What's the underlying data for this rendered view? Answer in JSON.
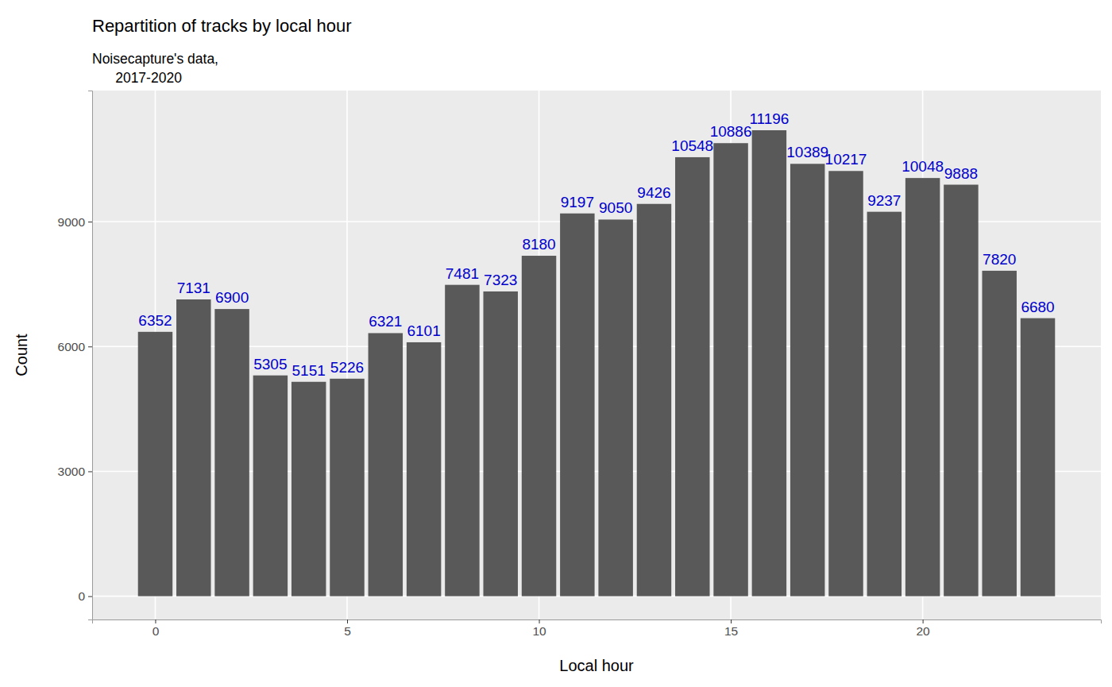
{
  "chart_data": {
    "type": "bar",
    "title": "Repartition of tracks by local hour",
    "subtitle": "Noisecapture's data,\n      2017-2020",
    "x_label": "Local hour",
    "y_label": "Count",
    "x": [
      0,
      1,
      2,
      3,
      4,
      5,
      6,
      7,
      8,
      9,
      10,
      11,
      12,
      13,
      14,
      15,
      16,
      17,
      18,
      19,
      20,
      21,
      22,
      23
    ],
    "values": [
      6352,
      7131,
      6900,
      5305,
      5151,
      5226,
      6321,
      6101,
      7481,
      7323,
      8180,
      9197,
      9050,
      9426,
      10548,
      10886,
      11196,
      10389,
      10217,
      9237,
      10048,
      9888,
      7820,
      6680
    ],
    "color": "#595959",
    "xlim": [
      -1.645,
      24.645
    ],
    "xticks": [
      0,
      5,
      10,
      15,
      20
    ],
    "ylim": [
      -560,
      12150
    ],
    "yticks": [
      0,
      3000,
      6000,
      9000
    ],
    "grid": true,
    "data_labels": true
  }
}
